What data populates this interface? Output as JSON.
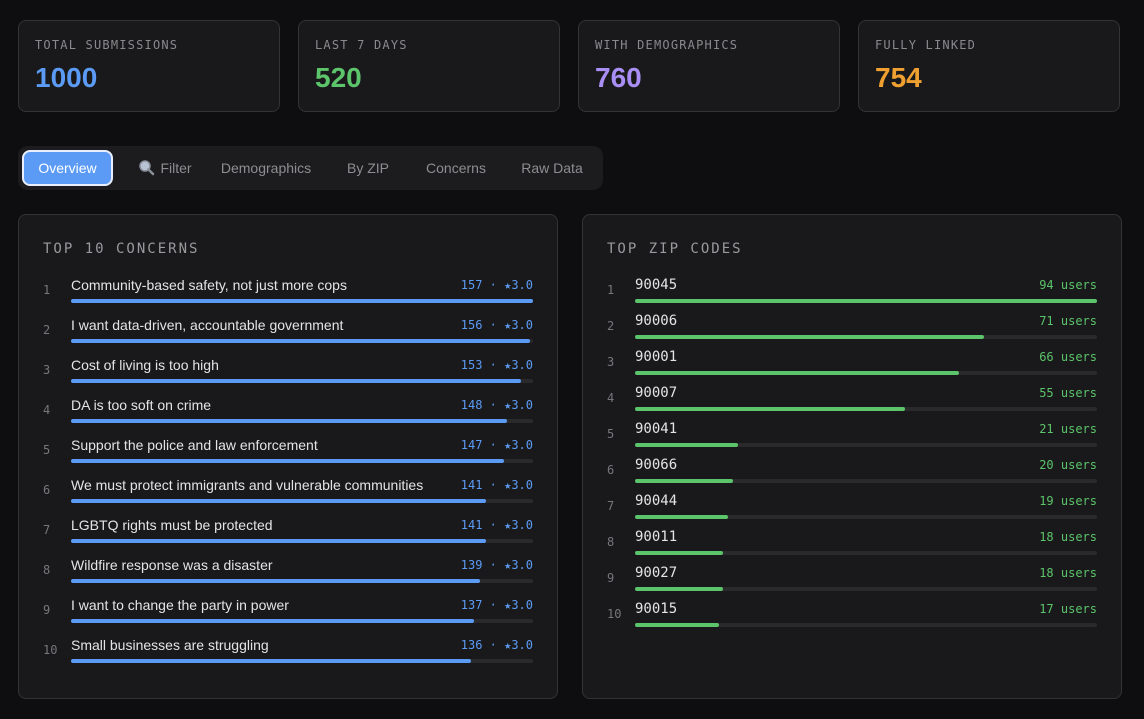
{
  "stats": [
    {
      "label": "TOTAL SUBMISSIONS",
      "value": 1000,
      "color": "#5b9bf5"
    },
    {
      "label": "LAST 7 DAYS",
      "value": 520,
      "color": "#5cc46a"
    },
    {
      "label": "WITH DEMOGRAPHICS",
      "value": 760,
      "color": "#a98ef5"
    },
    {
      "label": "FULLY LINKED",
      "value": 754,
      "color": "#f0a030"
    }
  ],
  "tabs": [
    "Overview",
    "Filter",
    "Demographics",
    "By ZIP",
    "Concerns",
    "Raw Data"
  ],
  "active_tab": 0,
  "concerns": {
    "title": "TOP 10 CONCERNS",
    "color": "#5b9bf5",
    "items": [
      {
        "rank": 1,
        "label": "Community-based safety, not just more cops",
        "count": 157,
        "count_label": "157 · ★3.0"
      },
      {
        "rank": 2,
        "label": "I want data-driven, accountable government",
        "count": 156,
        "count_label": "156 · ★3.0"
      },
      {
        "rank": 3,
        "label": "Cost of living is too high",
        "count": 153,
        "count_label": "153 · ★3.0"
      },
      {
        "rank": 4,
        "label": "DA is too soft on crime",
        "count": 148,
        "count_label": "148 · ★3.0"
      },
      {
        "rank": 5,
        "label": "Support the police and law enforcement",
        "count": 147,
        "count_label": "147 · ★3.0"
      },
      {
        "rank": 6,
        "label": "We must protect immigrants and vulnerable communities",
        "count": 141,
        "count_label": "141 · ★3.0"
      },
      {
        "rank": 7,
        "label": "LGBTQ rights must be protected",
        "count": 141,
        "count_label": "141 · ★3.0"
      },
      {
        "rank": 8,
        "label": "Wildfire response was a disaster",
        "count": 139,
        "count_label": "139 · ★3.0"
      },
      {
        "rank": 9,
        "label": "I want to change the party in power",
        "count": 137,
        "count_label": "137 · ★3.0"
      },
      {
        "rank": 10,
        "label": "Small businesses are struggling",
        "count": 136,
        "count_label": "136 · ★3.0"
      }
    ]
  },
  "zips": {
    "title": "TOP ZIP CODES",
    "color": "#5cc46a",
    "items": [
      {
        "rank": 1,
        "label": "90045",
        "count": 94,
        "count_label": "94 users"
      },
      {
        "rank": 2,
        "label": "90006",
        "count": 71,
        "count_label": "71 users"
      },
      {
        "rank": 3,
        "label": "90001",
        "count": 66,
        "count_label": "66 users"
      },
      {
        "rank": 4,
        "label": "90007",
        "count": 55,
        "count_label": "55 users"
      },
      {
        "rank": 5,
        "label": "90041",
        "count": 21,
        "count_label": "21 users"
      },
      {
        "rank": 6,
        "label": "90066",
        "count": 20,
        "count_label": "20 users"
      },
      {
        "rank": 7,
        "label": "90044",
        "count": 19,
        "count_label": "19 users"
      },
      {
        "rank": 8,
        "label": "90011",
        "count": 18,
        "count_label": "18 users"
      },
      {
        "rank": 9,
        "label": "90027",
        "count": 18,
        "count_label": "18 users"
      },
      {
        "rank": 10,
        "label": "90015",
        "count": 17,
        "count_label": "17 users"
      }
    ]
  }
}
